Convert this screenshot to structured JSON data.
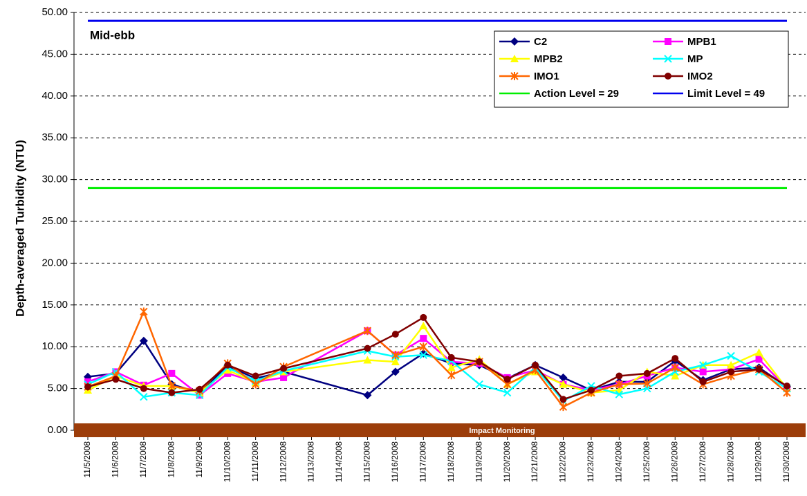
{
  "chart_data": {
    "type": "line",
    "y_label": "Depth-averaged Turbidity (NTU)",
    "annotation": "Mid-ebb",
    "band_label": "Impact Monitoring",
    "band_color": "#9c3d0a",
    "grid": true,
    "legend": "upper right",
    "categories": [
      "11/5/2008",
      "11/6/2008",
      "11/7/2008",
      "11/8/2008",
      "11/9/2008",
      "11/10/2008",
      "11/11/2008",
      "11/12/2008",
      "11/13/2008",
      "11/14/2008",
      "11/15/2008",
      "11/16/2008",
      "11/17/2008",
      "11/18/2008",
      "11/19/2008",
      "11/20/2008",
      "11/21/2008",
      "11/22/2008",
      "11/23/2008",
      "11/24/2008",
      "11/25/2008",
      "11/26/2008",
      "11/27/2008",
      "11/28/2008",
      "11/29/2008",
      "11/30/2008"
    ],
    "x": [
      "11/5/2008",
      "11/6/2008",
      "11/7/2008",
      "11/8/2008",
      "11/9/2008",
      "11/10/2008",
      "11/11/2008",
      "11/12/2008",
      "11/15/2008",
      "11/16/2008",
      "11/17/2008",
      "11/18/2008",
      "11/19/2008",
      "11/20/2008",
      "11/21/2008",
      "11/22/2008",
      "11/23/2008",
      "11/24/2008",
      "11/25/2008",
      "11/26/2008",
      "11/27/2008",
      "11/28/2008",
      "11/29/2008",
      "11/30/2008"
    ],
    "ylim": [
      0,
      50
    ],
    "yticks": [
      {
        "value": 0,
        "label": "0.00"
      },
      {
        "value": 5,
        "label": "5.00"
      },
      {
        "value": 10,
        "label": "10.00"
      },
      {
        "value": 15,
        "label": "15.00"
      },
      {
        "value": 20,
        "label": "20.00"
      },
      {
        "value": 25,
        "label": "25.00"
      },
      {
        "value": 30,
        "label": "30.00"
      },
      {
        "value": 35,
        "label": "35.00"
      },
      {
        "value": 40,
        "label": "40.00"
      },
      {
        "value": 45,
        "label": "45.00"
      },
      {
        "value": 50,
        "label": "50.00"
      }
    ],
    "series": [
      {
        "name": "C2",
        "color": "#000080",
        "marker": "diamond",
        "values": [
          6.4,
          6.8,
          10.7,
          5.5,
          4.5,
          7.7,
          6.2,
          7.0,
          4.2,
          7.0,
          9.2,
          8.0,
          7.8,
          6.2,
          7.8,
          6.3,
          4.8,
          5.8,
          5.8,
          8.3,
          6.0,
          7.3,
          7.5,
          5.2
        ]
      },
      {
        "name": "MPB1",
        "color": "#ff00ff",
        "marker": "square",
        "values": [
          5.8,
          7.0,
          5.4,
          6.8,
          4.2,
          6.8,
          5.8,
          6.3,
          11.9,
          9.0,
          11.0,
          8.2,
          8.0,
          6.3,
          7.2,
          5.5,
          4.8,
          5.5,
          6.5,
          7.5,
          7.0,
          7.3,
          8.5,
          5.0
        ]
      },
      {
        "name": "MPB2",
        "color": "#ffff00",
        "marker": "triangle",
        "values": [
          4.8,
          6.5,
          5.3,
          5.3,
          4.5,
          7.2,
          5.7,
          7.0,
          8.4,
          8.2,
          12.5,
          7.5,
          8.5,
          5.5,
          7.0,
          5.5,
          4.5,
          4.8,
          7.0,
          6.5,
          7.8,
          7.8,
          9.3,
          5.0
        ]
      },
      {
        "name": "MP",
        "color": "#00ffff",
        "marker": "x",
        "values": [
          5.5,
          7.0,
          4.0,
          4.5,
          4.2,
          7.5,
          5.9,
          7.1,
          9.5,
          8.8,
          9.0,
          8.3,
          5.5,
          4.5,
          7.5,
          3.5,
          5.3,
          4.3,
          5.0,
          7.0,
          7.8,
          8.9,
          7.0,
          5.0
        ]
      },
      {
        "name": "IMO1",
        "color": "#ff6600",
        "marker": "star",
        "values": [
          5.2,
          6.5,
          14.2,
          5.3,
          4.7,
          8.0,
          5.5,
          7.6,
          11.9,
          9.0,
          10.0,
          6.6,
          8.2,
          5.5,
          7.2,
          2.8,
          4.5,
          5.5,
          5.6,
          7.5,
          5.5,
          6.5,
          7.3,
          4.5
        ]
      },
      {
        "name": "IMO2",
        "color": "#800000",
        "marker": "circle",
        "values": [
          5.2,
          6.1,
          5.0,
          4.5,
          4.9,
          7.8,
          6.5,
          7.4,
          9.8,
          11.5,
          13.5,
          8.7,
          8.2,
          6.1,
          7.8,
          3.7,
          4.8,
          6.5,
          6.8,
          8.6,
          5.8,
          7.0,
          7.3,
          5.3
        ]
      }
    ],
    "reference_lines": [
      {
        "name": "Action Level = 29",
        "color": "#00ee00",
        "value": 29
      },
      {
        "name": "Limit Level = 49",
        "color": "#0000ee",
        "value": 49
      }
    ]
  }
}
